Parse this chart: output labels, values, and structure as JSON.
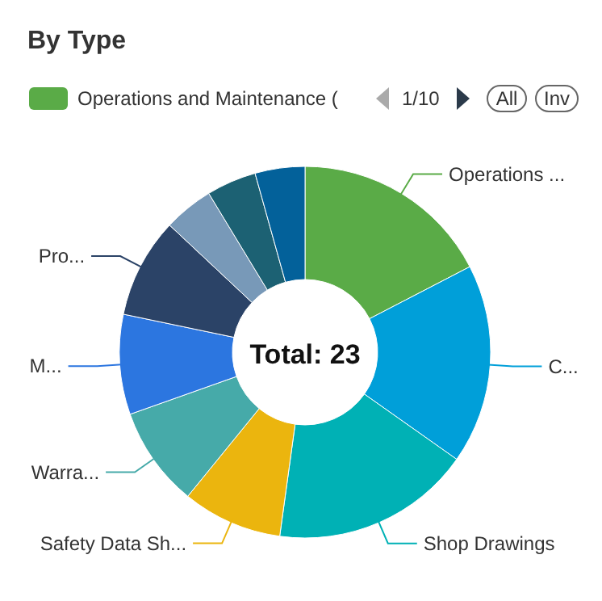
{
  "chart_data": {
    "type": "donut",
    "title": "By Type",
    "categories": [
      "Operations ...",
      "C...",
      "Shop Drawings",
      "Safety Data Sh...",
      "Warra...",
      "M...",
      "Pro...",
      null,
      null,
      null
    ],
    "values": [
      17.39,
      17.39,
      17.4,
      8.7,
      8.7,
      8.7,
      8.7,
      4.34,
      4.34,
      4.34
    ],
    "colors": [
      "#5aab47",
      "#009fd9",
      "#00b1b5",
      "#ebb50e",
      "#46aaa9",
      "#2c76e0",
      "#2b4367",
      "#7899b8",
      "#1c6173",
      "#03619a"
    ],
    "annotations": [
      "Total: 23",
      "Operations and Maintenance (",
      "1/10",
      "All",
      "Inv"
    ]
  }
}
